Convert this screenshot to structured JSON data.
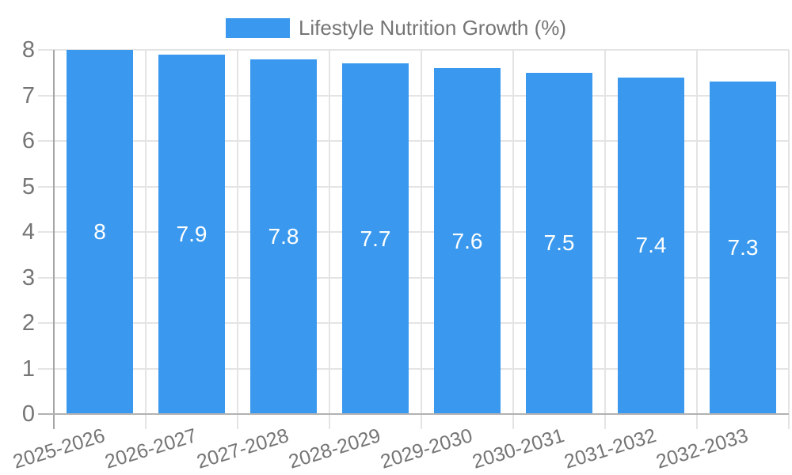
{
  "chart_data": {
    "type": "bar",
    "title": "",
    "series_name": "Lifestyle Nutrition Growth (%)",
    "categories": [
      "2025-2026",
      "2026-2027",
      "2027-2028",
      "2028-2029",
      "2029-2030",
      "2030-2031",
      "2031-2032",
      "2032-2033"
    ],
    "values": [
      8,
      7.9,
      7.8,
      7.7,
      7.6,
      7.5,
      7.4,
      7.3
    ],
    "value_labels": [
      "8",
      "7.9",
      "7.8",
      "7.7",
      "7.6",
      "7.5",
      "7.4",
      "7.3"
    ],
    "xlabel": "",
    "ylabel": "",
    "ylim": [
      0,
      8
    ],
    "yticks": [
      0,
      1,
      2,
      3,
      4,
      5,
      6,
      7,
      8
    ],
    "grid": true,
    "legend_position": "top-center",
    "x_tick_label_rotation_deg": -17,
    "colors": {
      "bar": "#3a99ee",
      "axis_text": "#757575",
      "bar_label_text": "#ffffff",
      "gridline": "#e4e4e4",
      "y_axis_line": "#a6a6a6",
      "x_axis_line": "#b2b2b2",
      "background": "#ffffff"
    }
  }
}
